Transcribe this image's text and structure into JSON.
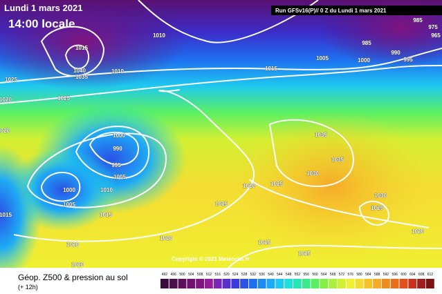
{
  "header": {
    "date": "Lundi 1 mars 2021",
    "time": "14:00 locale",
    "run": "Run GFSv16(P)// 0 Z du Lundi 1 mars 2021"
  },
  "footer": {
    "title": "Géop. Z500 & pression au sol",
    "step": "(+ 12h)",
    "copyright": "Copyright © 2021 Meteociel.fr"
  },
  "legend": {
    "scale": [
      492,
      496,
      500,
      504,
      508,
      512,
      516,
      520,
      524,
      528,
      532,
      536,
      540,
      544,
      548,
      552,
      556,
      560,
      564,
      568,
      572,
      576,
      580,
      584,
      588,
      592,
      596,
      600,
      604,
      608,
      612
    ],
    "colors": [
      "#3a0a3a",
      "#4b0f4b",
      "#5c105c",
      "#6e126e",
      "#801480",
      "#93209a",
      "#7a26b8",
      "#5a30cc",
      "#3c3cdc",
      "#2a52e6",
      "#1e6ef0",
      "#1e8cf5",
      "#1eaaf5",
      "#1ec8f0",
      "#1ee0dc",
      "#28e6b4",
      "#3cec8c",
      "#5af064",
      "#82f046",
      "#aaf03c",
      "#d2f032",
      "#f0f032",
      "#f5dc32",
      "#f5c328",
      "#f5aa28",
      "#f08c1e",
      "#eb6e1e",
      "#e1501e",
      "#c8321e",
      "#a01e1e",
      "#7a1414"
    ]
  },
  "isobar_labels": [
    "1015",
    "1010",
    "1010",
    "1040",
    "1035",
    "1025",
    "1020",
    "1025",
    "1015",
    "1005",
    "1000",
    "985",
    "990",
    "995",
    "985",
    "975",
    "965",
    "1000",
    "990",
    "995",
    "1005",
    "1010",
    "1000",
    "1005",
    "1015",
    "1020",
    "1015",
    "1020",
    "1020",
    "1020",
    "1020",
    "1025",
    "1015",
    "1030",
    "1035",
    "1035",
    "1030",
    "1025",
    "1020",
    "1015",
    "1015"
  ]
}
